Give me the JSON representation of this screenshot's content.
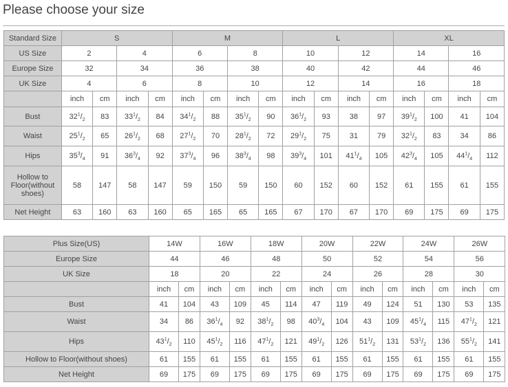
{
  "title": "Please choose your size",
  "table1": {
    "rows": [
      {
        "label": "Standard Size",
        "groups": [
          "S",
          "M",
          "L",
          "XL"
        ]
      },
      {
        "label": "US Size",
        "sizes": [
          "2",
          "4",
          "6",
          "8",
          "10",
          "12",
          "14",
          "16"
        ]
      },
      {
        "label": "Europe Size",
        "sizes": [
          "32",
          "34",
          "36",
          "38",
          "40",
          "42",
          "44",
          "46"
        ]
      },
      {
        "label": "UK Size",
        "sizes": [
          "4",
          "6",
          "8",
          "10",
          "12",
          "14",
          "16",
          "18"
        ]
      },
      {
        "label": "",
        "units": [
          "inch",
          "cm"
        ]
      },
      {
        "label": "Bust",
        "values": [
          "32 1/2",
          "83",
          "33 1/2",
          "84",
          "34 1/2",
          "88",
          "35 1/2",
          "90",
          "36 1/2",
          "93",
          "38",
          "97",
          "39 1/2",
          "100",
          "41",
          "104"
        ]
      },
      {
        "label": "Waist",
        "values": [
          "25 1/2",
          "65",
          "26 1/2",
          "68",
          "27 1/2",
          "70",
          "28 1/2",
          "72",
          "29 1/2",
          "75",
          "31",
          "79",
          "32 1/2",
          "83",
          "34",
          "86"
        ]
      },
      {
        "label": "Hips",
        "values": [
          "35 3/4",
          "91",
          "36 3/4",
          "92",
          "37 3/4",
          "96",
          "38 3/4",
          "98",
          "39 3/4",
          "101",
          "41 1/4",
          "105",
          "42 3/4",
          "105",
          "44 1/4",
          "112"
        ]
      },
      {
        "label": "Hollow to Floor(without shoes)",
        "values": [
          "58",
          "147",
          "58",
          "147",
          "59",
          "150",
          "59",
          "150",
          "60",
          "152",
          "60",
          "152",
          "61",
          "155",
          "61",
          "155"
        ]
      },
      {
        "label": "Net Height",
        "values": [
          "63",
          "160",
          "63",
          "160",
          "65",
          "165",
          "65",
          "165",
          "67",
          "170",
          "67",
          "170",
          "69",
          "175",
          "69",
          "175"
        ]
      }
    ]
  },
  "table2": {
    "rows": [
      {
        "label": "Plus Size(US)",
        "sizes": [
          "14W",
          "16W",
          "18W",
          "20W",
          "22W",
          "24W",
          "26W"
        ]
      },
      {
        "label": "Europe Size",
        "sizes": [
          "44",
          "46",
          "48",
          "50",
          "52",
          "54",
          "56"
        ]
      },
      {
        "label": "UK Size",
        "sizes": [
          "18",
          "20",
          "22",
          "24",
          "26",
          "28",
          "30"
        ]
      },
      {
        "label": "",
        "units": [
          "inch",
          "cm"
        ]
      },
      {
        "label": "Bust",
        "values": [
          "41",
          "104",
          "43",
          "109",
          "45",
          "114",
          "47",
          "119",
          "49",
          "124",
          "51",
          "130",
          "53",
          "135"
        ]
      },
      {
        "label": "Waist",
        "values": [
          "34",
          "86",
          "36 1/4",
          "92",
          "38 1/2",
          "98",
          "40 3/4",
          "104",
          "43",
          "109",
          "45 1/4",
          "115",
          "47 1/2",
          "121"
        ]
      },
      {
        "label": "Hips",
        "values": [
          "43 1/2",
          "110",
          "45 1/2",
          "116",
          "47 1/2",
          "121",
          "49 1/2",
          "126",
          "51 1/2",
          "131",
          "53 1/2",
          "136",
          "55 1/2",
          "141"
        ]
      },
      {
        "label": "Hollow to Floor(without shoes)",
        "values": [
          "61",
          "155",
          "61",
          "155",
          "61",
          "155",
          "61",
          "155",
          "61",
          "155",
          "61",
          "155",
          "61",
          "155"
        ]
      },
      {
        "label": "Net Height",
        "values": [
          "69",
          "175",
          "69",
          "175",
          "69",
          "175",
          "69",
          "175",
          "69",
          "175",
          "69",
          "175",
          "69",
          "175"
        ]
      }
    ]
  }
}
